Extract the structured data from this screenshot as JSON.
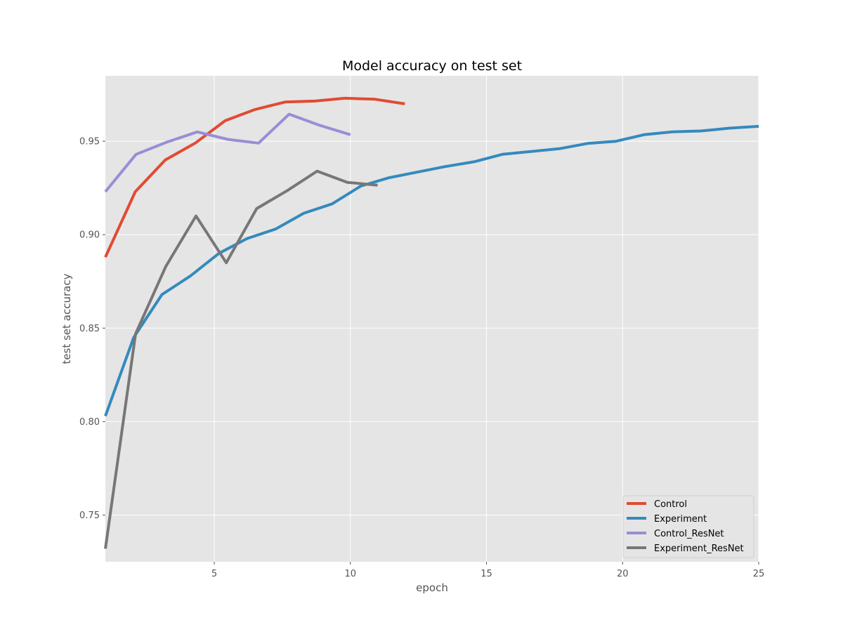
{
  "chart_data": {
    "type": "line",
    "title": "Model accuracy on test set",
    "xlabel": "epoch",
    "ylabel": "test set accuracy",
    "xlim": [
      1,
      25
    ],
    "ylim": [
      0.725,
      0.985
    ],
    "xticks": [
      5,
      10,
      15,
      20,
      25
    ],
    "yticks": [
      0.75,
      0.8,
      0.85,
      0.9,
      0.95
    ],
    "grid": true,
    "legend_position": "lower-right",
    "series": [
      {
        "name": "Control",
        "color": "#E24A33",
        "x": [
          1,
          2.1,
          3.2,
          4.3,
          5.4,
          6.5,
          7.6,
          8.7,
          9.8,
          10.9,
          12
        ],
        "y": [
          0.888,
          0.923,
          0.94,
          0.949,
          0.961,
          0.967,
          0.971,
          0.9715,
          0.973,
          0.9725,
          0.97
        ]
      },
      {
        "name": "Experiment",
        "color": "#348ABD",
        "x": [
          1,
          2.04,
          3.08,
          4.13,
          5.17,
          6.21,
          7.25,
          8.29,
          9.33,
          10.38,
          11.42,
          12.46,
          13.5,
          14.54,
          15.58,
          16.63,
          17.67,
          18.71,
          19.75,
          20.79,
          21.83,
          22.88,
          23.92,
          25
        ],
        "y": [
          0.803,
          0.845,
          0.868,
          0.878,
          0.89,
          0.898,
          0.903,
          0.9115,
          0.9165,
          0.926,
          0.9305,
          0.9335,
          0.9365,
          0.939,
          0.943,
          0.9445,
          0.946,
          0.9488,
          0.95,
          0.9535,
          0.955,
          0.9555,
          0.957,
          0.958
        ]
      },
      {
        "name": "Control_ResNet",
        "color": "#988ED5",
        "x": [
          1,
          2.125,
          3.25,
          4.375,
          5.5,
          6.625,
          7.75,
          8.875,
          10
        ],
        "y": [
          0.923,
          0.943,
          0.9495,
          0.955,
          0.951,
          0.949,
          0.9645,
          0.9585,
          0.9535
        ]
      },
      {
        "name": "Experiment_ResNet",
        "color": "#777777",
        "x": [
          1,
          2.11,
          3.22,
          4.33,
          5.44,
          6.56,
          7.67,
          8.78,
          9.89,
          11
        ],
        "y": [
          0.732,
          0.847,
          0.883,
          0.91,
          0.885,
          0.914,
          0.9235,
          0.934,
          0.928,
          0.9265
        ]
      }
    ]
  }
}
